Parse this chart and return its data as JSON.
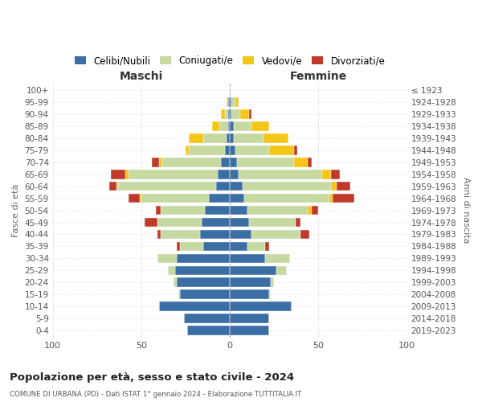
{
  "age_groups": [
    "100+",
    "95-99",
    "90-94",
    "85-89",
    "80-84",
    "75-79",
    "70-74",
    "65-69",
    "60-64",
    "55-59",
    "50-54",
    "45-49",
    "40-44",
    "35-39",
    "30-34",
    "25-29",
    "20-24",
    "15-19",
    "10-14",
    "5-9",
    "0-4"
  ],
  "birth_years": [
    "≤ 1923",
    "1924-1928",
    "1929-1933",
    "1934-1938",
    "1939-1943",
    "1944-1948",
    "1949-1953",
    "1954-1958",
    "1959-1963",
    "1964-1968",
    "1969-1973",
    "1974-1978",
    "1979-1983",
    "1984-1988",
    "1989-1993",
    "1994-1998",
    "1999-2003",
    "2004-2008",
    "2009-2013",
    "2014-2018",
    "2019-2023"
  ],
  "colors": {
    "celibi": "#3a6ea5",
    "coniugati": "#c5d9a0",
    "vedovi": "#f5c518",
    "divorziati": "#c0392b"
  },
  "maschi": {
    "celibi": [
      0,
      1,
      1,
      1,
      2,
      3,
      5,
      7,
      8,
      12,
      14,
      16,
      17,
      15,
      30,
      31,
      30,
      28,
      40,
      26,
      24
    ],
    "coniugati": [
      0,
      0,
      2,
      5,
      13,
      20,
      33,
      50,
      55,
      38,
      25,
      25,
      22,
      13,
      11,
      4,
      2,
      1,
      0,
      0,
      0
    ],
    "vedovi": [
      0,
      1,
      2,
      4,
      8,
      2,
      2,
      2,
      1,
      1,
      0,
      0,
      0,
      0,
      0,
      0,
      0,
      0,
      0,
      0,
      0
    ],
    "divorziati": [
      0,
      0,
      0,
      0,
      0,
      0,
      4,
      8,
      4,
      6,
      3,
      7,
      2,
      2,
      0,
      0,
      0,
      0,
      0,
      0,
      0
    ]
  },
  "femmine": {
    "celibi": [
      0,
      1,
      1,
      2,
      2,
      3,
      4,
      5,
      7,
      8,
      10,
      11,
      12,
      10,
      20,
      26,
      23,
      22,
      35,
      22,
      22
    ],
    "coniugati": [
      0,
      2,
      5,
      10,
      17,
      19,
      32,
      47,
      50,
      48,
      34,
      26,
      28,
      10,
      14,
      6,
      2,
      1,
      0,
      0,
      0
    ],
    "vedovi": [
      0,
      2,
      5,
      10,
      14,
      14,
      8,
      5,
      3,
      2,
      2,
      0,
      0,
      0,
      0,
      0,
      0,
      0,
      0,
      0,
      0
    ],
    "divorziati": [
      0,
      0,
      1,
      0,
      0,
      2,
      2,
      5,
      8,
      12,
      4,
      3,
      5,
      2,
      0,
      0,
      0,
      0,
      0,
      0,
      0
    ]
  },
  "title": "Popolazione per età, sesso e stato civile - 2024",
  "subtitle": "COMUNE DI URBANA (PD) - Dati ISTAT 1° gennaio 2024 - Elaborazione TUTTITALIA.IT",
  "xlabel_left": "Maschi",
  "xlabel_right": "Femmine",
  "ylabel_left": "Fasce di età",
  "ylabel_right": "Anni di nascita",
  "xlim": 100,
  "bg_color": "#ffffff",
  "grid_color": "#cccccc",
  "legend_labels": [
    "Celibi/Nubili",
    "Coniugati/e",
    "Vedovi/e",
    "Divorziati/e"
  ]
}
